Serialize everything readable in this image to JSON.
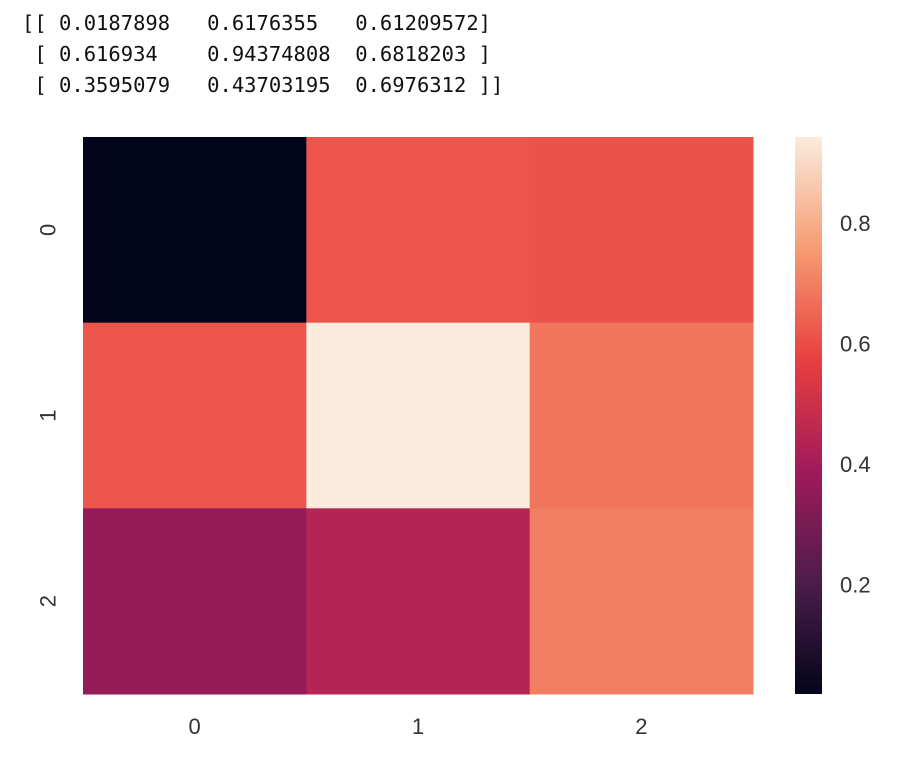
{
  "printed_output": {
    "lines": [
      "[[ 0.0187898   0.6176355   0.61209572]",
      " [ 0.616934    0.94374808  0.6818203 ]",
      " [ 0.3595079   0.43703195  0.6976312 ]]"
    ]
  },
  "chart_data": {
    "type": "heatmap",
    "title": "",
    "xlabel": "",
    "ylabel": "",
    "x_categories": [
      "0",
      "1",
      "2"
    ],
    "y_categories": [
      "0",
      "1",
      "2"
    ],
    "values": [
      [
        0.0187898,
        0.6176355,
        0.61209572
      ],
      [
        0.616934,
        0.94374808,
        0.6818203
      ],
      [
        0.3595079,
        0.43703195,
        0.6976312
      ]
    ],
    "colorbar": {
      "range": [
        0.0187898,
        0.94374808
      ],
      "ticks": [
        0.2,
        0.4,
        0.6,
        0.8
      ],
      "tick_labels": [
        "0.2",
        "0.4",
        "0.6",
        "0.8"
      ],
      "placement": "right"
    },
    "colormap": "rocket",
    "colormap_stops": [
      "#03051a",
      "#4c1d4b",
      "#a11a5b",
      "#e83f3f",
      "#f69c73",
      "#faebdd"
    ],
    "grid": false
  }
}
